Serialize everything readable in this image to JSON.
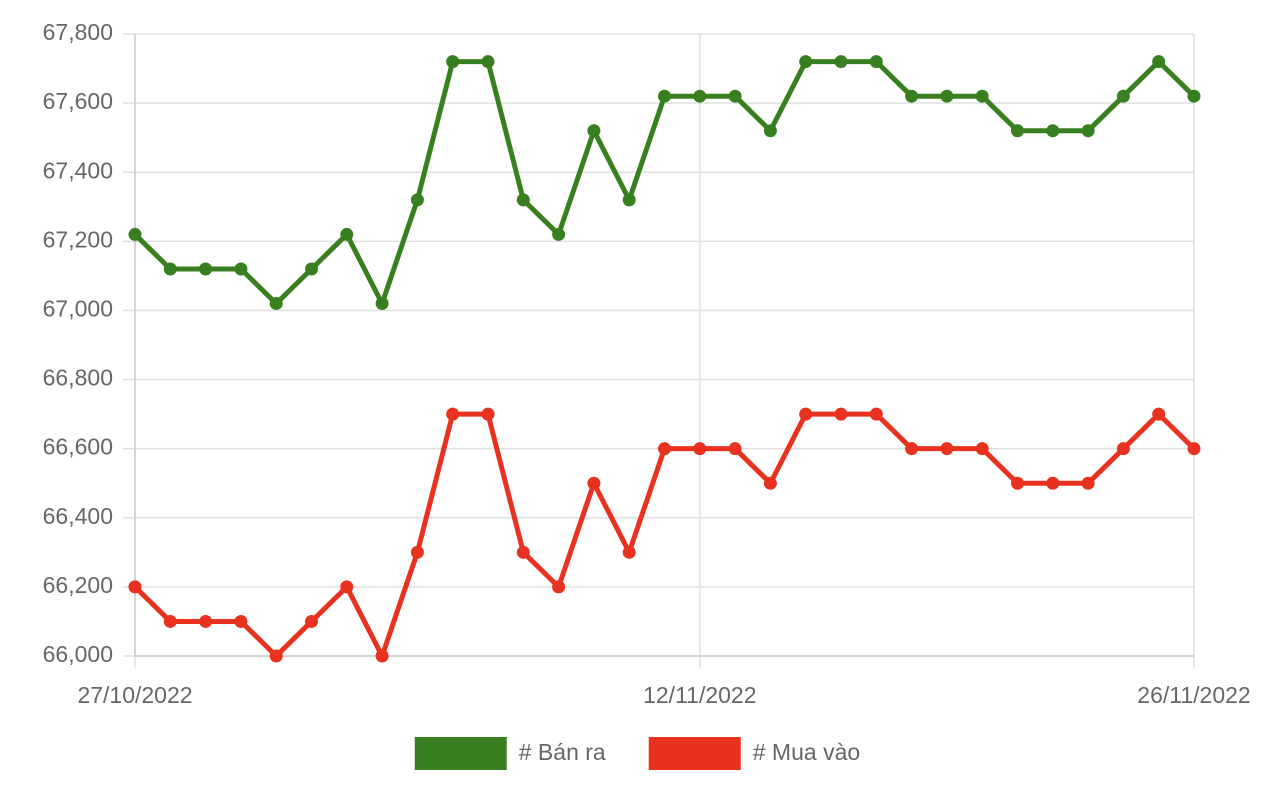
{
  "chart_data": {
    "type": "line",
    "categories": [
      "27/10/2022",
      null,
      null,
      null,
      null,
      null,
      null,
      null,
      null,
      null,
      null,
      null,
      null,
      null,
      null,
      null,
      "12/11/2022",
      null,
      null,
      null,
      null,
      null,
      null,
      null,
      null,
      null,
      null,
      null,
      null,
      null,
      "26/11/2022"
    ],
    "series": [
      {
        "name": "# Bán ra",
        "color": "#38801f",
        "values": [
          67220,
          67120,
          67120,
          67120,
          67020,
          67120,
          67220,
          67020,
          67320,
          67720,
          67720,
          67320,
          67220,
          67520,
          67320,
          67620,
          67620,
          67620,
          67520,
          67720,
          67720,
          67720,
          67620,
          67620,
          67620,
          67520,
          67520,
          67520,
          67620,
          67720,
          67620
        ]
      },
      {
        "name": "# Mua vào",
        "color": "#e8321f",
        "values": [
          66200,
          66100,
          66100,
          66100,
          66000,
          66100,
          66200,
          66000,
          66300,
          66700,
          66700,
          66300,
          66200,
          66500,
          66300,
          66600,
          66600,
          66600,
          66500,
          66700,
          66700,
          66700,
          66600,
          66600,
          66600,
          66500,
          66500,
          66500,
          66600,
          66700,
          66600
        ]
      }
    ],
    "ylim": [
      66000,
      67800
    ],
    "yticks": [
      {
        "value": 66000,
        "label": "66,000"
      },
      {
        "value": 66200,
        "label": "66,200"
      },
      {
        "value": 66400,
        "label": "66,400"
      },
      {
        "value": 66600,
        "label": "66,600"
      },
      {
        "value": 66800,
        "label": "66,800"
      },
      {
        "value": 67000,
        "label": "67,000"
      },
      {
        "value": 67200,
        "label": "67,200"
      },
      {
        "value": 67400,
        "label": "67,400"
      },
      {
        "value": 67600,
        "label": "67,600"
      },
      {
        "value": 67800,
        "label": "67,800"
      }
    ],
    "grid": true,
    "legend": "bottom"
  }
}
